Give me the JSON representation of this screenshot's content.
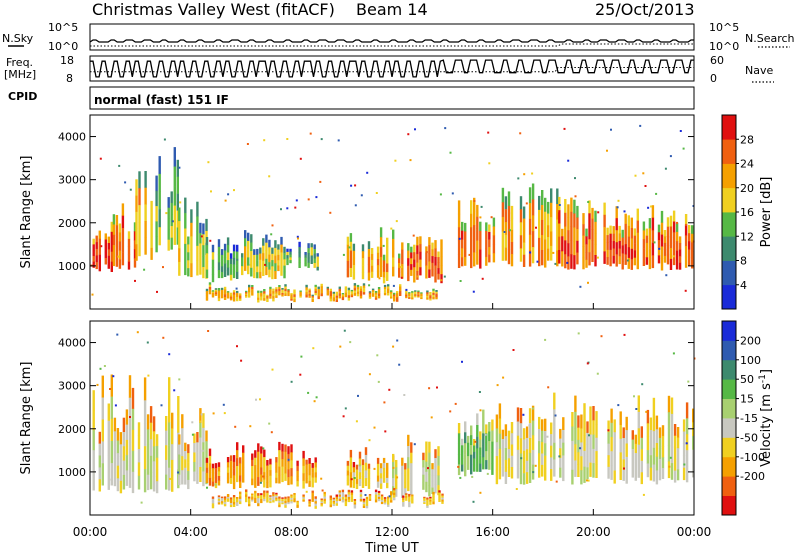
{
  "header": {
    "title": "Christmas Valley West (fitACF)",
    "beam": "Beam 14",
    "date": "25/Oct/2013"
  },
  "top_panels": {
    "nsky_label": "N.Sky",
    "nsky_ticks": [
      "10^5",
      "10^0"
    ],
    "nsearch_label": "N.Search",
    "nsearch_ticks": [
      "10^5",
      "10^0"
    ],
    "freq_label": "Freq.",
    "freq_unit": "[MHz]",
    "freq_ticks": [
      "18",
      "8"
    ],
    "nave_label": "Nave",
    "nave_ticks": [
      "60",
      "0"
    ],
    "cpid_label": "CPID",
    "cpid_value": "normal (fast) 151 IF"
  },
  "colors": {
    "power": [
      "#1a2bd8",
      "#2f5bb0",
      "#3d8a6e",
      "#56b845",
      "#f0d020",
      "#f5a000",
      "#f06010",
      "#e01010"
    ],
    "velocity": [
      "#e01010",
      "#f06010",
      "#f5a000",
      "#f0d020",
      "#c8c8c0",
      "#a8d070",
      "#56b845",
      "#3d8a6e",
      "#2f5bb0",
      "#1a2bd8"
    ]
  },
  "chart_data": [
    {
      "type": "heatmap",
      "name": "power",
      "ylabel": "Slant Range [km]",
      "ylim": [
        0,
        4500
      ],
      "y_ticks": [
        "1000",
        "2000",
        "3000",
        "4000"
      ],
      "xlim": [
        0,
        24
      ],
      "colorbar": {
        "label": "Power [dB]",
        "range": [
          0,
          32
        ],
        "ticks": [
          "4",
          "8",
          "12",
          "16",
          "20",
          "24",
          "28"
        ]
      },
      "blocks": [
        {
          "t0": 0.1,
          "t1": 0.9,
          "r0": 850,
          "r1": 2050,
          "level": 7
        },
        {
          "t0": 0.9,
          "t1": 1.8,
          "r0": 850,
          "r1": 2300,
          "level": 6
        },
        {
          "t0": 1.8,
          "t1": 2.6,
          "r0": 1100,
          "r1": 3200,
          "level": 5
        },
        {
          "t0": 2.6,
          "t1": 3.5,
          "r0": 1300,
          "r1": 3700,
          "level": 3
        },
        {
          "t0": 3.5,
          "t1": 4.6,
          "r0": 700,
          "r1": 2500,
          "level": 4
        },
        {
          "t0": 4.6,
          "t1": 6.0,
          "r0": 600,
          "r1": 1600,
          "level": 3
        },
        {
          "t0": 6.0,
          "t1": 7.8,
          "r0": 700,
          "r1": 1700,
          "level": 4
        },
        {
          "t0": 7.8,
          "t1": 9.0,
          "r0": 900,
          "r1": 1500,
          "level": 3
        },
        {
          "t0": 10.2,
          "t1": 12.0,
          "r0": 600,
          "r1": 1800,
          "level": 5
        },
        {
          "t0": 12.0,
          "t1": 14.0,
          "r0": 600,
          "r1": 1700,
          "level": 6
        },
        {
          "t0": 14.5,
          "t1": 16.0,
          "r0": 900,
          "r1": 2500,
          "level": 6
        },
        {
          "t0": 16.0,
          "t1": 18.6,
          "r0": 950,
          "r1": 2800,
          "level": 5
        },
        {
          "t0": 18.6,
          "t1": 21.0,
          "r0": 900,
          "r1": 2600,
          "level": 6
        },
        {
          "t0": 21.0,
          "t1": 24.0,
          "r0": 900,
          "r1": 2400,
          "level": 6
        },
        {
          "t0": 4.6,
          "t1": 14.0,
          "r0": 150,
          "r1": 450,
          "level": 5
        }
      ]
    },
    {
      "type": "heatmap",
      "name": "velocity",
      "ylabel": "Slant Range [km]",
      "ylim": [
        0,
        4500
      ],
      "y_ticks": [
        "1000",
        "2000",
        "3000",
        "4000"
      ],
      "xlim": [
        0,
        24
      ],
      "xlabel": "Time UT",
      "x_ticks": [
        "00:00",
        "04:00",
        "08:00",
        "12:00",
        "16:00",
        "20:00",
        "00:00"
      ],
      "colorbar": {
        "label": "Velocity [m s^-1]",
        "range": [
          -250,
          250
        ],
        "ticks": [
          "200",
          "100",
          "50",
          "15",
          "-15",
          "-50",
          "-100",
          "-200"
        ]
      },
      "blocks": [
        {
          "t0": 0.1,
          "t1": 3.5,
          "r0": 500,
          "r1": 3200,
          "level": 4
        },
        {
          "t0": 3.5,
          "t1": 4.6,
          "r0": 600,
          "r1": 2400,
          "level": 4
        },
        {
          "t0": 4.6,
          "t1": 9.0,
          "r0": 600,
          "r1": 1600,
          "level": 2
        },
        {
          "t0": 10.2,
          "t1": 12.0,
          "r0": 600,
          "r1": 1700,
          "level": 3
        },
        {
          "t0": 12.0,
          "t1": 14.0,
          "r0": 400,
          "r1": 1700,
          "level": 4
        },
        {
          "t0": 14.5,
          "t1": 16.0,
          "r0": 900,
          "r1": 2300,
          "level": 6
        },
        {
          "t0": 16.0,
          "t1": 24.0,
          "r0": 700,
          "r1": 2700,
          "level": 4
        },
        {
          "t0": 4.6,
          "t1": 14.0,
          "r0": 150,
          "r1": 450,
          "level": 3
        }
      ]
    }
  ]
}
